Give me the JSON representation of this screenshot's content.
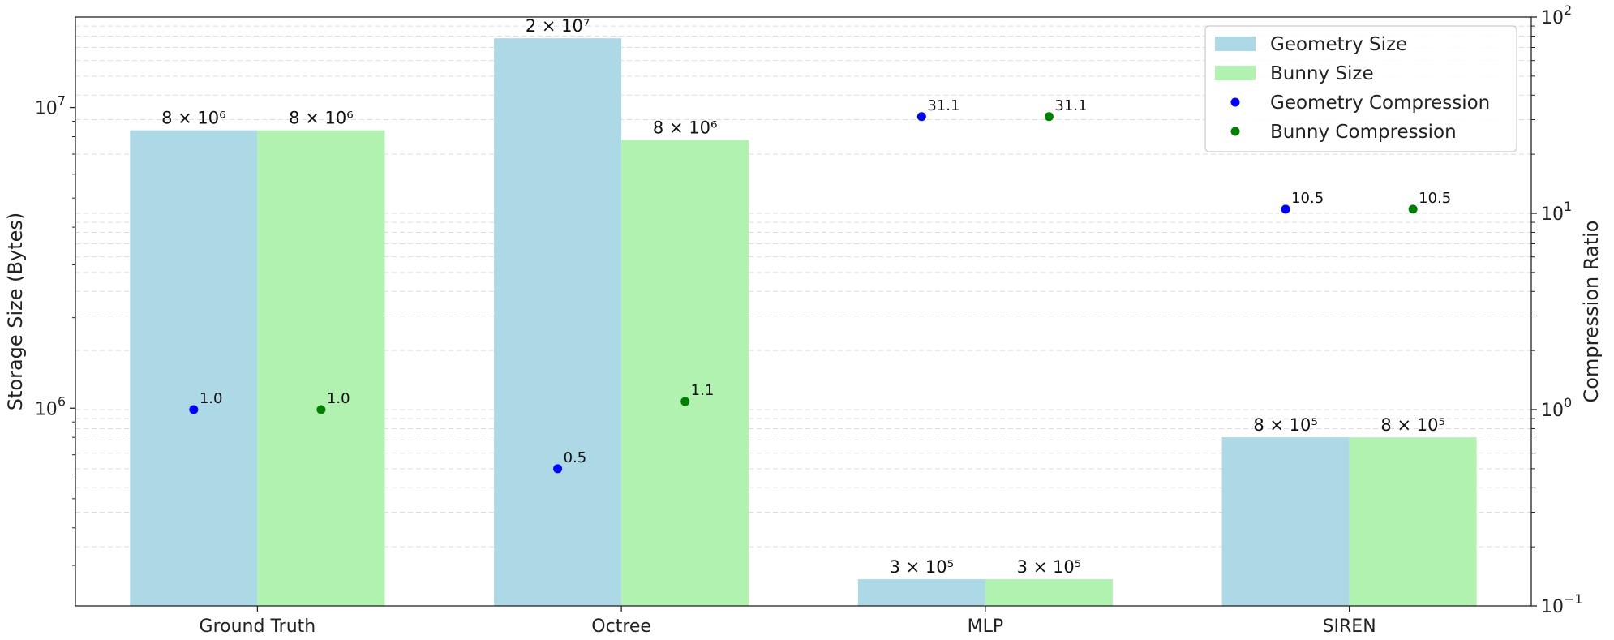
{
  "chart_data": {
    "type": "bar",
    "categories": [
      "Ground Truth",
      "Octree",
      "MLP",
      "SIREN"
    ],
    "bar_series": [
      {
        "name": "Geometry Size",
        "color": "#add8e6",
        "values": [
          8400000,
          17000000,
          270000,
          800000
        ],
        "labels": [
          "8 × 10⁶",
          "2 × 10⁷",
          "3 × 10⁵",
          "8 × 10⁵"
        ]
      },
      {
        "name": "Bunny Size",
        "color": "#b2f2b0",
        "values": [
          8400000,
          7800000,
          270000,
          800000
        ],
        "labels": [
          "8 × 10⁶",
          "8 × 10⁶",
          "3 × 10⁵",
          "8 × 10⁵"
        ]
      }
    ],
    "point_series": [
      {
        "name": "Geometry Compression",
        "color": "#0000ff",
        "values": [
          1.0,
          0.5,
          31.1,
          10.5
        ],
        "labels": [
          "1.0",
          "0.5",
          "31.1",
          "10.5"
        ]
      },
      {
        "name": "Bunny Compression",
        "color": "#008000",
        "values": [
          1.0,
          1.1,
          31.1,
          10.5
        ],
        "labels": [
          "1.0",
          "1.1",
          "31.1",
          "10.5"
        ]
      }
    ],
    "ylabel": "Storage Size (Bytes)",
    "ylabel_right": "Compression Ratio",
    "y_scale": "log",
    "ylim": [
      220000,
      20000000
    ],
    "y_ticks": [
      {
        "value": 1000000,
        "base": "10",
        "exp": "6"
      },
      {
        "value": 10000000,
        "base": "10",
        "exp": "7"
      }
    ],
    "y2_scale": "log",
    "y2lim": [
      0.1,
      100
    ],
    "y2_ticks": [
      {
        "value": 0.1,
        "base": "10",
        "exp": "−1"
      },
      {
        "value": 1,
        "base": "10",
        "exp": "0"
      },
      {
        "value": 10,
        "base": "10",
        "exp": "1"
      },
      {
        "value": 100,
        "base": "10",
        "exp": "2"
      }
    ],
    "grid": "horizontal dashed (minor)",
    "legend_position": "top-right"
  }
}
